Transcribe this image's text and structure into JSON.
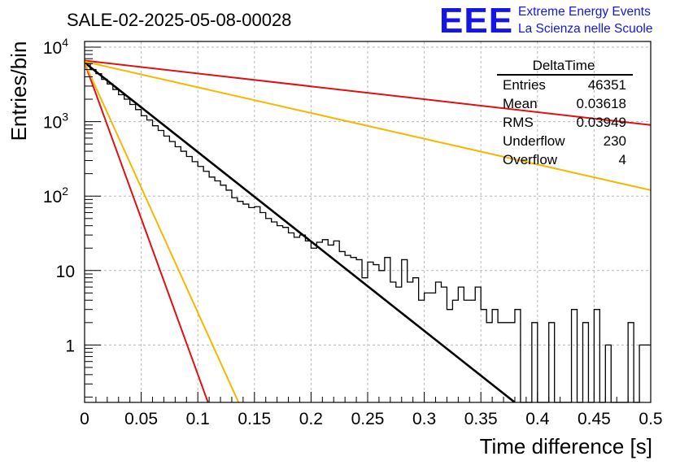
{
  "logo": {
    "big": "EEE",
    "line1": "Extreme Energy Events",
    "line2": "La Scienza nelle Scuole",
    "color": "#1515e6"
  },
  "stats_box": {
    "name": "DeltaTime",
    "rows": [
      {
        "label": "Entries",
        "value": "46351"
      },
      {
        "label": "Mean",
        "value": "0.03618"
      },
      {
        "label": "RMS",
        "value": "0.03949"
      },
      {
        "label": "Underflow",
        "value": "230"
      },
      {
        "label": "Overflow",
        "value": "4"
      }
    ]
  },
  "chart_data": {
    "type": "line",
    "title": "SALE-02-2025-05-08-00028",
    "xlabel": "Time difference [s]",
    "ylabel": "Entries/bin",
    "xlim": [
      0,
      0.5
    ],
    "ylim": [
      0.15,
      10000
    ],
    "yscale": "log",
    "grid": true,
    "x_ticks": [
      "0",
      "0.05",
      "0.1",
      "0.15",
      "0.2",
      "0.25",
      "0.3",
      "0.35",
      "0.4",
      "0.45",
      "0.5"
    ],
    "y_ticks": [
      {
        "value": 1,
        "base": "1",
        "exp": ""
      },
      {
        "value": 10,
        "base": "10",
        "exp": ""
      },
      {
        "value": 100,
        "base": "10",
        "exp": "2"
      },
      {
        "value": 1000,
        "base": "10",
        "exp": "3"
      },
      {
        "value": 10000,
        "base": "10",
        "exp": "4"
      }
    ],
    "histogram": {
      "color": "#000000",
      "bin_width": 0.005,
      "x_start": 0,
      "values": [
        6000,
        5000,
        4400,
        3700,
        3200,
        2700,
        2300,
        2000,
        1700,
        1450,
        1200,
        1050,
        880,
        760,
        640,
        540,
        460,
        400,
        340,
        290,
        250,
        215,
        180,
        160,
        140,
        120,
        95,
        85,
        78,
        70,
        72,
        60,
        50,
        45,
        40,
        38,
        32,
        28,
        30,
        25,
        20,
        24,
        26,
        22,
        25,
        18,
        16,
        15,
        14,
        8,
        13,
        12,
        10,
        15,
        7,
        6,
        14,
        7,
        8,
        4,
        5,
        5,
        7,
        6,
        3,
        4,
        6,
        4,
        4,
        6,
        3,
        2,
        3,
        2,
        2,
        2,
        3,
        0,
        0,
        2,
        0,
        0,
        2,
        0,
        0,
        0,
        3,
        0,
        2,
        0,
        3,
        0,
        1,
        0,
        0,
        0,
        2,
        0,
        1,
        1
      ]
    },
    "fits": [
      {
        "color": "#000000",
        "points": [
          [
            0,
            6200
          ],
          [
            0.38,
            0.15
          ]
        ]
      },
      {
        "color": "#e01010",
        "points": [
          [
            0,
            6600
          ],
          [
            0.5,
            900
          ]
        ]
      },
      {
        "color": "#f5b800",
        "points": [
          [
            0,
            6400
          ],
          [
            0.5,
            120
          ]
        ]
      },
      {
        "color": "#e01010",
        "points": [
          [
            0,
            6200
          ],
          [
            0.109,
            0.15
          ]
        ]
      },
      {
        "color": "#f5b800",
        "points": [
          [
            0,
            6200
          ],
          [
            0.136,
            0.15
          ]
        ]
      }
    ]
  }
}
